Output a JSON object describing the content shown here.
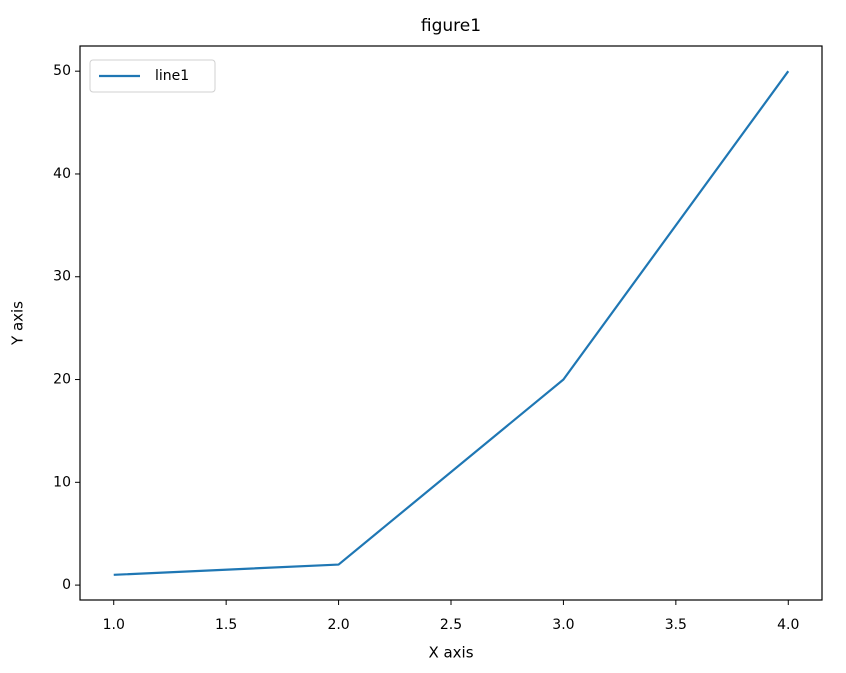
{
  "chart_data": {
    "type": "line",
    "title": "figure1",
    "x_label": "X axis",
    "y_label": "Y axis",
    "x": [
      1,
      2,
      3,
      4
    ],
    "series": [
      {
        "name": "line1",
        "color": "#1f77b4",
        "values": [
          1,
          2,
          20,
          50
        ]
      }
    ],
    "xlim": [
      0.85,
      4.15
    ],
    "xticks": [
      {
        "value": 1,
        "label": "1.0"
      },
      1.5,
      {
        "value": 2,
        "label": "2.0"
      },
      2.5,
      {
        "value": 3,
        "label": "3.0"
      },
      3.5,
      {
        "value": 4,
        "label": "4.0"
      }
    ],
    "ylim": [
      -1.45,
      52.45
    ],
    "yticks": [
      0,
      10,
      20,
      30,
      40,
      50
    ],
    "grid": false,
    "legend": "upper left"
  }
}
